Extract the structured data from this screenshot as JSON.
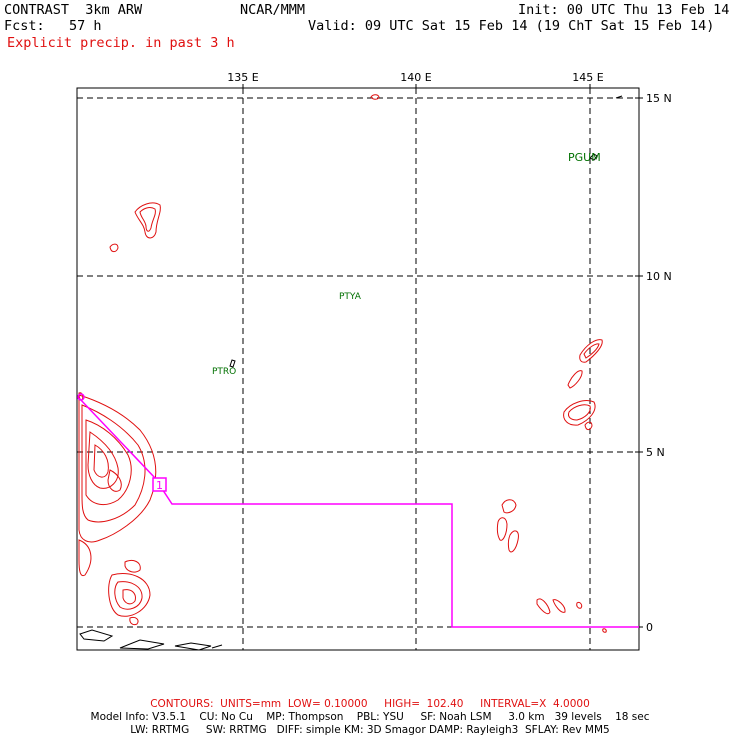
{
  "header": {
    "model_title": "CONTRAST  3km ARW",
    "center": "NCAR/MMM",
    "init": "Init: 00 UTC Thu 13 Feb 14",
    "fcst": "Fcst:   57 h",
    "valid": "Valid: 09 UTC Sat 15 Feb 14 (19 ChT Sat 15 Feb 14)",
    "field": "Explicit precip. in past 3 h"
  },
  "map": {
    "lon_labels": [
      "135 E",
      "140 E",
      "145 E"
    ],
    "lat_labels": [
      "15 N",
      "10 N",
      "5 N",
      "0"
    ],
    "stations": [
      "PGUM",
      "PTYA",
      "PTRO"
    ],
    "route_marker": "1",
    "colors": {
      "precip": "#e01010",
      "route": "#ff00ff",
      "coast": "#000000",
      "station": "#007000"
    }
  },
  "footer": {
    "contours": "CONTOURS:  UNITS=mm  LOW= 0.10000     HIGH=  102.40     INTERVAL=X  4.0000",
    "model_info_1": "Model Info: V3.5.1    CU: No Cu    MP: Thompson    PBL: YSU     SF: Noah LSM     3.0 km   39 levels    18 sec",
    "model_info_2": "LW: RRTMG     SW: RRTMG   DIFF: simple KM: 3D Smagor DAMP: Rayleigh3  SFLAY: Rev MM5"
  }
}
